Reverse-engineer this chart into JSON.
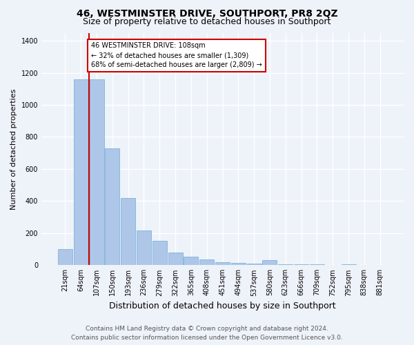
{
  "title": "46, WESTMINSTER DRIVE, SOUTHPORT, PR8 2QZ",
  "subtitle": "Size of property relative to detached houses in Southport",
  "xlabel": "Distribution of detached houses by size in Southport",
  "ylabel": "Number of detached properties",
  "footer_line1": "Contains HM Land Registry data © Crown copyright and database right 2024.",
  "footer_line2": "Contains public sector information licensed under the Open Government Licence v3.0.",
  "annotation_line1": "46 WESTMINSTER DRIVE: 108sqm",
  "annotation_line2": "← 32% of detached houses are smaller (1,309)",
  "annotation_line3": "68% of semi-detached houses are larger (2,809) →",
  "categories": [
    "21sqm",
    "64sqm",
    "107sqm",
    "150sqm",
    "193sqm",
    "236sqm",
    "279sqm",
    "322sqm",
    "365sqm",
    "408sqm",
    "451sqm",
    "494sqm",
    "537sqm",
    "580sqm",
    "623sqm",
    "666sqm",
    "709sqm",
    "752sqm",
    "795sqm",
    "838sqm",
    "881sqm"
  ],
  "values": [
    100,
    1160,
    1160,
    730,
    420,
    215,
    150,
    80,
    55,
    35,
    20,
    15,
    10,
    30,
    5,
    5,
    5,
    0,
    5,
    0,
    0
  ],
  "bar_color": "#aec6e8",
  "bar_edge_color": "#6aaed6",
  "vline_color": "#cc0000",
  "annotation_box_color": "#cc0000",
  "ylim": [
    0,
    1450
  ],
  "yticks": [
    0,
    200,
    400,
    600,
    800,
    1000,
    1200,
    1400
  ],
  "background_color": "#eef2f9",
  "grid_color": "#ffffff",
  "title_fontsize": 10,
  "subtitle_fontsize": 9,
  "xlabel_fontsize": 9,
  "ylabel_fontsize": 8,
  "tick_fontsize": 7,
  "annotation_fontsize": 7,
  "footer_fontsize": 6.5
}
